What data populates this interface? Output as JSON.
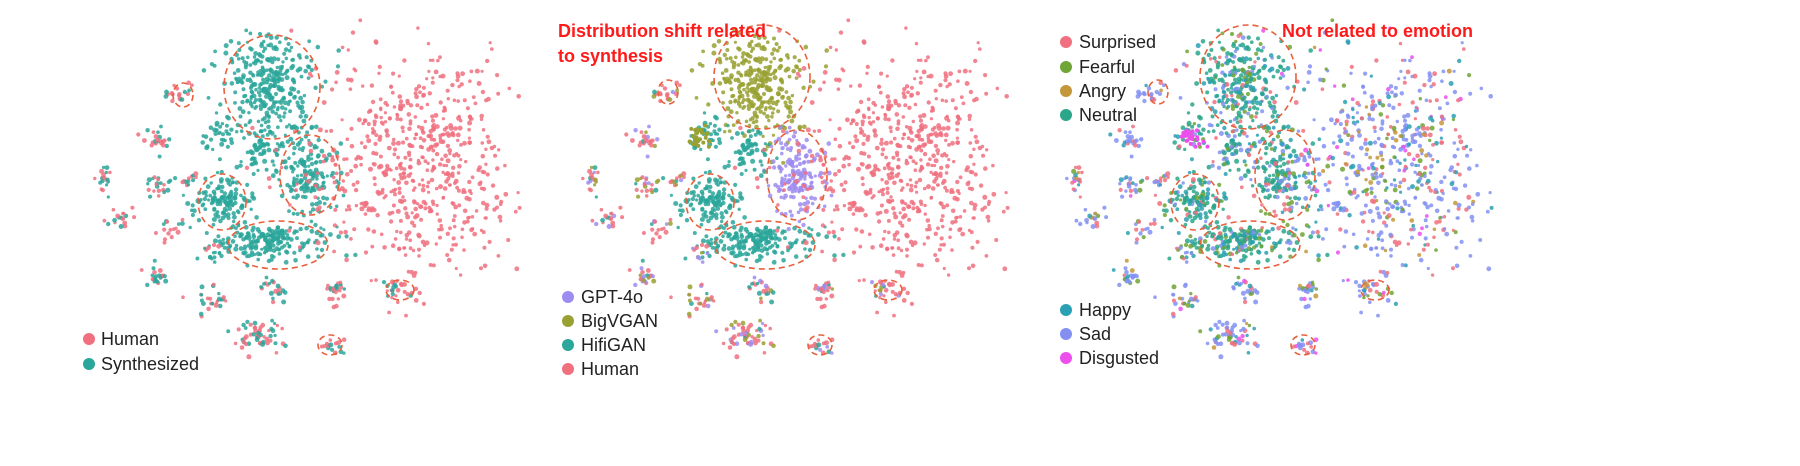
{
  "colors": {
    "human": "#f0707f",
    "synthesized": "#2aa69a",
    "gpt4o": "#9d8cf0",
    "bigvgan": "#99a132",
    "hifigan": "#2aa69a",
    "surprised": "#f0707f",
    "fearful": "#6ea534",
    "angry": "#c4963a",
    "neutral": "#2aa68a",
    "happy": "#2aa0b4",
    "sad": "#8390f2",
    "disgusted": "#ec4fec",
    "circle": "#e8603c",
    "annotation": "#ff1a1a"
  },
  "chart_data": [
    {
      "type": "scatter",
      "title": "",
      "legend_placement": "bottom-left",
      "series": [
        {
          "name": "Human",
          "color_key": "human"
        },
        {
          "name": "Synthesized",
          "color_key": "synthesized"
        }
      ],
      "annotations": []
    },
    {
      "type": "scatter",
      "title": "",
      "legend_placement": "bottom-left",
      "series": [
        {
          "name": "GPT-4o",
          "color_key": "gpt4o"
        },
        {
          "name": "BigVGAN",
          "color_key": "bigvgan"
        },
        {
          "name": "HifiGAN",
          "color_key": "hifigan"
        },
        {
          "name": "Human",
          "color_key": "human"
        }
      ],
      "annotations": [
        {
          "line1": "Distribution shift related",
          "line2": "to synthesis"
        }
      ]
    },
    {
      "type": "scatter",
      "title": "",
      "legend_placement": "top-left and bottom-left",
      "series": [
        {
          "name": "Surprised",
          "color_key": "surprised"
        },
        {
          "name": "Fearful",
          "color_key": "fearful"
        },
        {
          "name": "Angry",
          "color_key": "angry"
        },
        {
          "name": "Neutral",
          "color_key": "neutral"
        },
        {
          "name": "Happy",
          "color_key": "happy"
        },
        {
          "name": "Sad",
          "color_key": "sad"
        },
        {
          "name": "Disgusted",
          "color_key": "disgusted"
        }
      ],
      "annotations": [
        {
          "line1": "Not related to emotion"
        }
      ]
    }
  ]
}
